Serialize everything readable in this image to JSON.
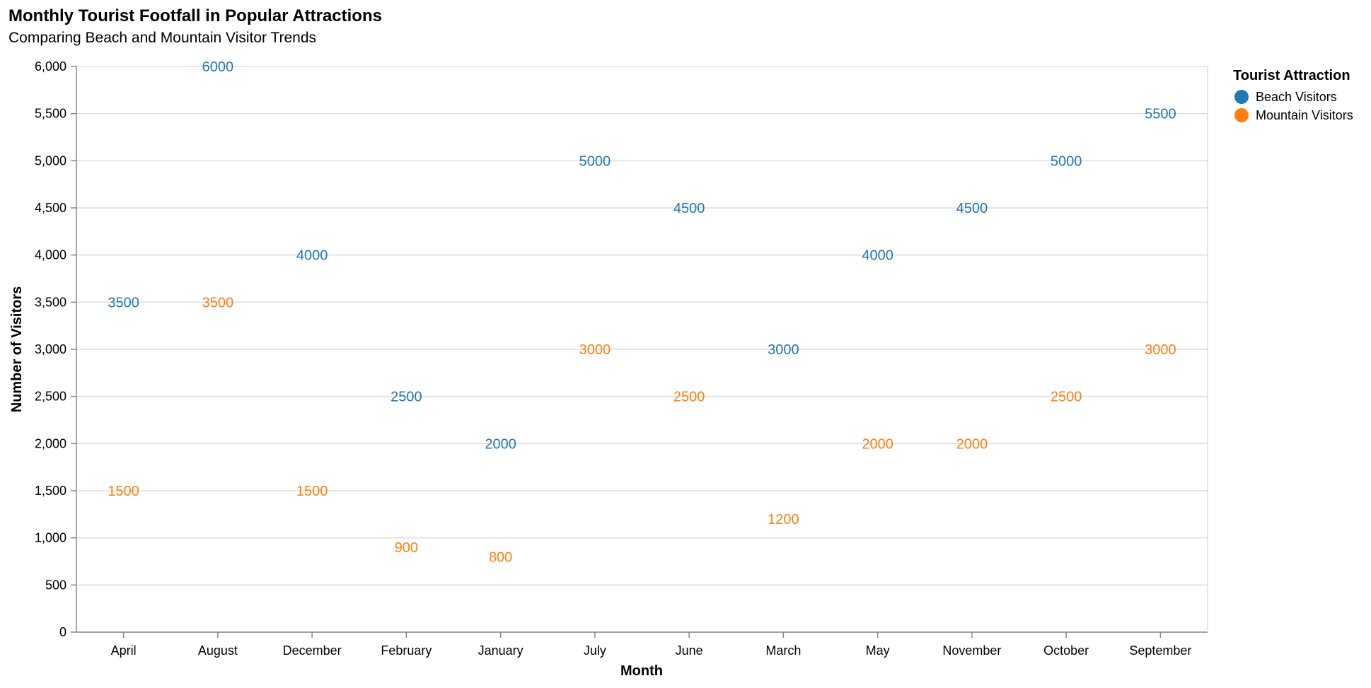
{
  "chart_data": {
    "type": "scatter",
    "title": "Monthly Tourist Footfall in Popular Attractions",
    "subtitle": "Comparing Beach and Mountain Visitor Trends",
    "xlabel": "Month",
    "ylabel": "Number of Visitors",
    "ylim": [
      0,
      6000
    ],
    "y_ticks": [
      0,
      500,
      1000,
      1500,
      2000,
      2500,
      3000,
      3500,
      4000,
      4500,
      5000,
      5500,
      6000
    ],
    "y_tick_labels": [
      "0",
      "500",
      "1,000",
      "1,500",
      "2,000",
      "2,500",
      "3,000",
      "3,500",
      "4,000",
      "4,500",
      "5,000",
      "5,500",
      "6,000"
    ],
    "grid": true,
    "legend_title": "Tourist Attraction",
    "legend_position": "top-right",
    "categories": [
      "April",
      "August",
      "December",
      "February",
      "January",
      "July",
      "June",
      "March",
      "May",
      "November",
      "October",
      "September"
    ],
    "series": [
      {
        "name": "Beach Visitors",
        "color": "#1f77b4",
        "values": [
          3500,
          6000,
          4000,
          2500,
          2000,
          5000,
          4500,
          3000,
          4000,
          4500,
          5000,
          5500
        ],
        "labels": [
          "3500",
          "6000",
          "4000",
          "2500",
          "2000",
          "5000",
          "4500",
          "3000",
          "4000",
          "4500",
          "5000",
          "5500"
        ]
      },
      {
        "name": "Mountain Visitors",
        "color": "#ff7f0e",
        "values": [
          1500,
          3500,
          1500,
          900,
          800,
          3000,
          2500,
          1200,
          2000,
          2000,
          2500,
          3000
        ],
        "labels": [
          "1500",
          "3500",
          "1500",
          "900",
          "800",
          "3000",
          "2500",
          "1200",
          "2000",
          "2000",
          "2500",
          "3000"
        ]
      }
    ]
  }
}
